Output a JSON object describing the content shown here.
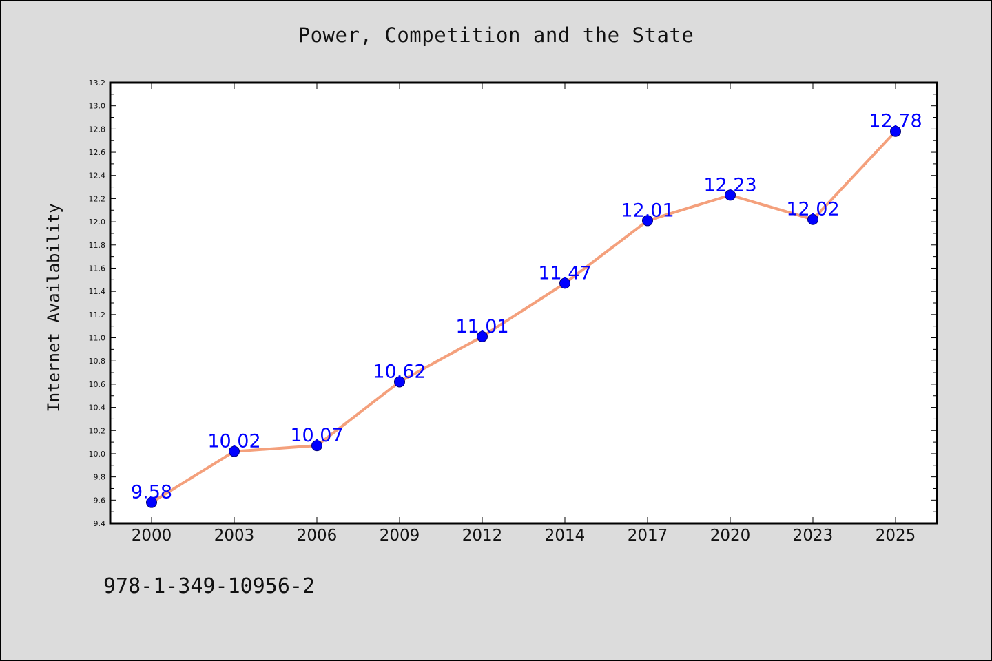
{
  "colors": {
    "background": "#dcdcdc",
    "plot_background": "#ffffff",
    "line": "#f4a07c",
    "marker": "#0000ff",
    "data_label": "#0000ff"
  },
  "footer": {
    "isbn": "978-1-349-10956-2"
  },
  "chart_data": {
    "type": "line",
    "title": "Power, Competition and the State",
    "xlabel": "",
    "ylabel": "Internet Availability",
    "categories": [
      "2000",
      "2003",
      "2006",
      "2009",
      "2012",
      "2014",
      "2017",
      "2020",
      "2023",
      "2025"
    ],
    "series": [
      {
        "values": [
          9.58,
          10.02,
          10.07,
          10.62,
          11.01,
          11.47,
          12.01,
          12.23,
          12.02,
          12.78
        ]
      }
    ],
    "data_labels": [
      "9.58",
      "10.02",
      "10.07",
      "10.62",
      "11.01",
      "11.47",
      "12.01",
      "12.23",
      "12.02",
      "12.78"
    ],
    "ylim": [
      9.4,
      13.2
    ],
    "yticks": [
      "9.4",
      "9.6",
      "9.8",
      "10.0",
      "10.2",
      "10.4",
      "10.6",
      "10.8",
      "11.0",
      "11.2",
      "11.4",
      "11.6",
      "11.8",
      "12.0",
      "12.2",
      "12.4",
      "12.6",
      "12.8",
      "13.0",
      "13.2"
    ],
    "grid": false,
    "legend": "none"
  }
}
